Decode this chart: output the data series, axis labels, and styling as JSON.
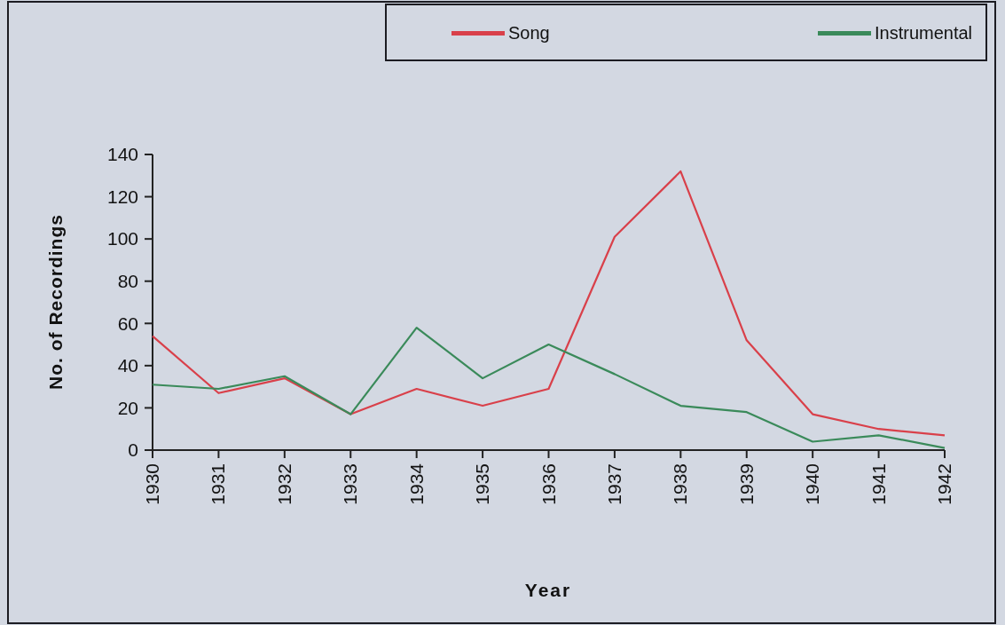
{
  "chart_data": {
    "type": "line",
    "xlabel": "Year",
    "ylabel": "No. of Recordings",
    "categories": [
      "1930",
      "1931",
      "1932",
      "1933",
      "1934",
      "1935",
      "1936",
      "1937",
      "1938",
      "1939",
      "1940",
      "1941",
      "1942"
    ],
    "series": [
      {
        "name": "Song",
        "color": "#d9404a",
        "values": [
          54,
          27,
          34,
          17,
          29,
          21,
          29,
          101,
          132,
          52,
          17,
          10,
          7
        ]
      },
      {
        "name": "Instrumental",
        "color": "#3a8a5a",
        "values": [
          31,
          29,
          35,
          17,
          58,
          34,
          50,
          36,
          21,
          18,
          4,
          7,
          1
        ]
      }
    ],
    "ylim": [
      0,
      140
    ],
    "yticks": [
      0,
      20,
      40,
      60,
      80,
      100,
      120,
      140
    ],
    "grid": false,
    "legend": "top right",
    "marker": "none",
    "line_style": "solid"
  }
}
